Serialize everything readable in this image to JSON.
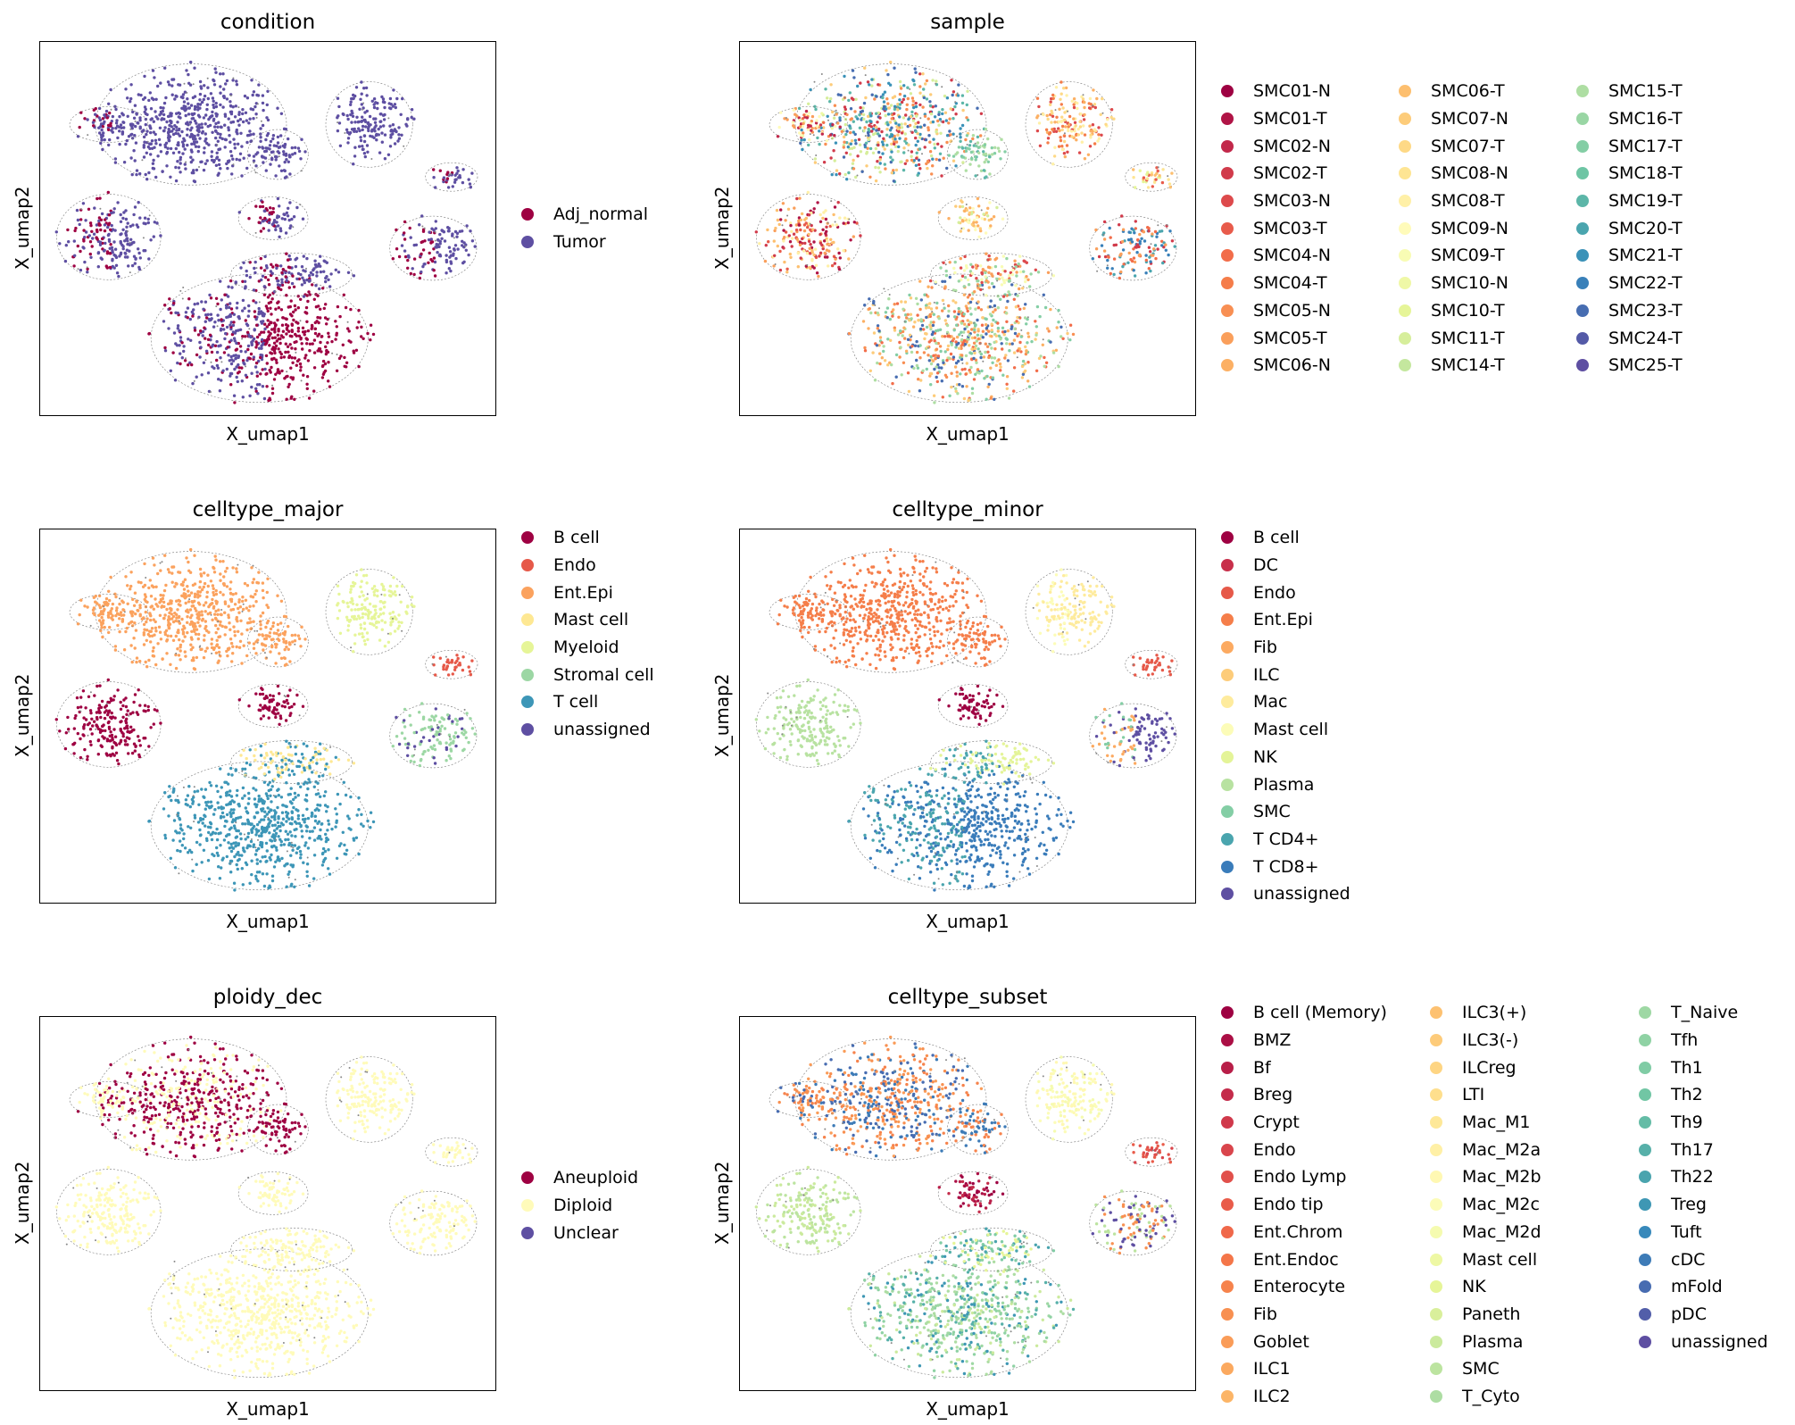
{
  "figure": {
    "panels": [
      {
        "key": "condition",
        "title": "condition",
        "xlabel": "X_umap1",
        "ylabel": "X_umap2",
        "legend_columns": 1,
        "legend": [
          {
            "label": "Adj_normal",
            "color": "#9e0142"
          },
          {
            "label": "Tumor",
            "color": "#5e4fa2"
          }
        ]
      },
      {
        "key": "sample",
        "title": "sample",
        "xlabel": "X_umap1",
        "ylabel": "X_umap2",
        "legend_columns": 3,
        "legend": [
          {
            "label": "SMC01-N",
            "color": "#9e0142"
          },
          {
            "label": "SMC01-T",
            "color": "#b01446"
          },
          {
            "label": "SMC02-N",
            "color": "#c2284a"
          },
          {
            "label": "SMC02-T",
            "color": "#d13b4b"
          },
          {
            "label": "SMC03-N",
            "color": "#dd4a4c"
          },
          {
            "label": "SMC03-T",
            "color": "#e85b4b"
          },
          {
            "label": "SMC04-N",
            "color": "#f26d4a"
          },
          {
            "label": "SMC04-T",
            "color": "#f57d4a"
          },
          {
            "label": "SMC05-N",
            "color": "#f88f53"
          },
          {
            "label": "SMC05-T",
            "color": "#fa9f5b"
          },
          {
            "label": "SMC06-N",
            "color": "#fcb064"
          },
          {
            "label": "SMC06-T",
            "color": "#fdbf6f"
          },
          {
            "label": "SMC07-N",
            "color": "#fdcc7a"
          },
          {
            "label": "SMC07-T",
            "color": "#fed986"
          },
          {
            "label": "SMC08-N",
            "color": "#fee593"
          },
          {
            "label": "SMC08-T",
            "color": "#fff0a7"
          },
          {
            "label": "SMC09-N",
            "color": "#fffbba"
          },
          {
            "label": "SMC09-T",
            "color": "#f8fcb4"
          },
          {
            "label": "SMC10-N",
            "color": "#eff8a6"
          },
          {
            "label": "SMC10-T",
            "color": "#e6f598"
          },
          {
            "label": "SMC11-T",
            "color": "#d6ee9b"
          },
          {
            "label": "SMC14-T",
            "color": "#c4e79e"
          },
          {
            "label": "SMC15-T",
            "color": "#aedea3"
          },
          {
            "label": "SMC16-T",
            "color": "#99d6a4"
          },
          {
            "label": "SMC17-T",
            "color": "#84cea5"
          },
          {
            "label": "SMC18-T",
            "color": "#6ec5a4"
          },
          {
            "label": "SMC19-T",
            "color": "#5cb6a8"
          },
          {
            "label": "SMC20-T",
            "color": "#4aa5ae"
          },
          {
            "label": "SMC21-T",
            "color": "#3b92b8"
          },
          {
            "label": "SMC22-T",
            "color": "#3980b9"
          },
          {
            "label": "SMC23-T",
            "color": "#476db1"
          },
          {
            "label": "SMC24-T",
            "color": "#545aa7"
          },
          {
            "label": "SMC25-T",
            "color": "#5e4fa2"
          }
        ]
      },
      {
        "key": "celltype_major",
        "title": "celltype_major",
        "xlabel": "X_umap1",
        "ylabel": "X_umap2",
        "legend_columns": 1,
        "legend": [
          {
            "label": "B cell",
            "color": "#9e0142"
          },
          {
            "label": "Endo",
            "color": "#e65949"
          },
          {
            "label": "Ent.Epi",
            "color": "#fba25e"
          },
          {
            "label": "Mast cell",
            "color": "#fee893"
          },
          {
            "label": "Myeloid",
            "color": "#e6f598"
          },
          {
            "label": "Stromal cell",
            "color": "#9cd7a4"
          },
          {
            "label": "T cell",
            "color": "#3d96b7"
          },
          {
            "label": "unassigned",
            "color": "#5e4fa2"
          }
        ]
      },
      {
        "key": "celltype_minor",
        "title": "celltype_minor",
        "xlabel": "X_umap1",
        "ylabel": "X_umap2",
        "legend_columns": 1,
        "legend": [
          {
            "label": "B cell",
            "color": "#9e0142"
          },
          {
            "label": "DC",
            "color": "#c8304b"
          },
          {
            "label": "Endo",
            "color": "#e65949"
          },
          {
            "label": "Ent.Epi",
            "color": "#f57e4a"
          },
          {
            "label": "Fib",
            "color": "#fcaa61"
          },
          {
            "label": "ILC",
            "color": "#fdcc7a"
          },
          {
            "label": "Mac",
            "color": "#feeb9d"
          },
          {
            "label": "Mast cell",
            "color": "#fcfcb8"
          },
          {
            "label": "NK",
            "color": "#e4f498"
          },
          {
            "label": "Plasma",
            "color": "#b8e2a1"
          },
          {
            "label": "SMC",
            "color": "#84cea5"
          },
          {
            "label": "T CD4+",
            "color": "#4aa5ae"
          },
          {
            "label": "T CD8+",
            "color": "#3a7cba"
          },
          {
            "label": "unassigned",
            "color": "#5e4fa2"
          }
        ]
      },
      {
        "key": "ploidy_dec",
        "title": "ploidy_dec",
        "xlabel": "X_umap1",
        "ylabel": "X_umap2",
        "legend_columns": 1,
        "legend": [
          {
            "label": "Aneuploid",
            "color": "#9e0142"
          },
          {
            "label": "Diploid",
            "color": "#fffbba"
          },
          {
            "label": "Unclear",
            "color": "#5e4fa2"
          }
        ]
      },
      {
        "key": "celltype_subset",
        "title": "celltype_subset",
        "xlabel": "X_umap1",
        "ylabel": "X_umap2",
        "legend_columns": 3,
        "legend": [
          {
            "label": "B cell (Memory)",
            "color": "#9e0142"
          },
          {
            "label": "BMZ",
            "color": "#ab0f45"
          },
          {
            "label": "Bf",
            "color": "#b81e48"
          },
          {
            "label": "Breg",
            "color": "#c42c4b"
          },
          {
            "label": "Crypt",
            "color": "#d0394b"
          },
          {
            "label": "Endo",
            "color": "#d9454c"
          },
          {
            "label": "Endo Lymp",
            "color": "#e1504b"
          },
          {
            "label": "Endo tip",
            "color": "#e95c4a"
          },
          {
            "label": "Ent.Chrom",
            "color": "#f0684a"
          },
          {
            "label": "Ent.Endoc",
            "color": "#f47649"
          },
          {
            "label": "Enterocyte",
            "color": "#f6834c"
          },
          {
            "label": "Fib",
            "color": "#f89051"
          },
          {
            "label": "Goblet",
            "color": "#fa9c58"
          },
          {
            "label": "ILC1",
            "color": "#fba95f"
          },
          {
            "label": "ILC2",
            "color": "#fcb567"
          },
          {
            "label": "ILC3(+)",
            "color": "#fdc171"
          },
          {
            "label": "ILC3(-)",
            "color": "#fdcb7a"
          },
          {
            "label": "ILCreg",
            "color": "#fed583"
          },
          {
            "label": "LTI",
            "color": "#fedf8d"
          },
          {
            "label": "Mac_M1",
            "color": "#fee898"
          },
          {
            "label": "Mac_M2a",
            "color": "#fff0a6"
          },
          {
            "label": "Mac_M2b",
            "color": "#fff8b3"
          },
          {
            "label": "Mac_M2c",
            "color": "#fcfcb8"
          },
          {
            "label": "Mac_M2d",
            "color": "#f5fbb0"
          },
          {
            "label": "Mast cell",
            "color": "#eef8a4"
          },
          {
            "label": "NK",
            "color": "#e6f598"
          },
          {
            "label": "Paneth",
            "color": "#d9ef9b"
          },
          {
            "label": "Plasma",
            "color": "#cbea9d"
          },
          {
            "label": "SMC",
            "color": "#bce4a0"
          },
          {
            "label": "T_Cyto",
            "color": "#addda3"
          },
          {
            "label": "T_Naive",
            "color": "#9ed8a4"
          },
          {
            "label": "Tfh",
            "color": "#8fd2a4"
          },
          {
            "label": "Th1",
            "color": "#80cca5"
          },
          {
            "label": "Th2",
            "color": "#71c6a4"
          },
          {
            "label": "Th9",
            "color": "#64bca6"
          },
          {
            "label": "Th17",
            "color": "#57b0a9"
          },
          {
            "label": "Th22",
            "color": "#4aa4ae"
          },
          {
            "label": "Treg",
            "color": "#3e97b4"
          },
          {
            "label": "Tuft",
            "color": "#3889bb"
          },
          {
            "label": "cDC",
            "color": "#3d7bb7"
          },
          {
            "label": "mFold",
            "color": "#476cb1"
          },
          {
            "label": "pDC",
            "color": "#525ea9"
          },
          {
            "label": "unassigned",
            "color": "#5e4fa2"
          }
        ]
      }
    ]
  },
  "chart_data": [
    {
      "type": "scatter",
      "title": "condition",
      "xlabel": "X_umap1",
      "ylabel": "X_umap2",
      "categories": [
        "Adj_normal",
        "Tumor"
      ]
    },
    {
      "type": "scatter",
      "title": "sample",
      "xlabel": "X_umap1",
      "ylabel": "X_umap2",
      "categories": [
        "SMC01-N",
        "SMC01-T",
        "SMC02-N",
        "SMC02-T",
        "SMC03-N",
        "SMC03-T",
        "SMC04-N",
        "SMC04-T",
        "SMC05-N",
        "SMC05-T",
        "SMC06-N",
        "SMC06-T",
        "SMC07-N",
        "SMC07-T",
        "SMC08-N",
        "SMC08-T",
        "SMC09-N",
        "SMC09-T",
        "SMC10-N",
        "SMC10-T",
        "SMC11-T",
        "SMC14-T",
        "SMC15-T",
        "SMC16-T",
        "SMC17-T",
        "SMC18-T",
        "SMC19-T",
        "SMC20-T",
        "SMC21-T",
        "SMC22-T",
        "SMC23-T",
        "SMC24-T",
        "SMC25-T"
      ]
    },
    {
      "type": "scatter",
      "title": "celltype_major",
      "xlabel": "X_umap1",
      "ylabel": "X_umap2",
      "categories": [
        "B cell",
        "Endo",
        "Ent.Epi",
        "Mast cell",
        "Myeloid",
        "Stromal cell",
        "T cell",
        "unassigned"
      ]
    },
    {
      "type": "scatter",
      "title": "celltype_minor",
      "xlabel": "X_umap1",
      "ylabel": "X_umap2",
      "categories": [
        "B cell",
        "DC",
        "Endo",
        "Ent.Epi",
        "Fib",
        "ILC",
        "Mac",
        "Mast cell",
        "NK",
        "Plasma",
        "SMC",
        "T CD4+",
        "T CD8+",
        "unassigned"
      ]
    },
    {
      "type": "scatter",
      "title": "ploidy_dec",
      "xlabel": "X_umap1",
      "ylabel": "X_umap2",
      "categories": [
        "Aneuploid",
        "Diploid",
        "Unclear"
      ]
    },
    {
      "type": "scatter",
      "title": "celltype_subset",
      "xlabel": "X_umap1",
      "ylabel": "X_umap2",
      "categories": [
        "B cell (Memory)",
        "BMZ",
        "Bf",
        "Breg",
        "Crypt",
        "Endo",
        "Endo Lymp",
        "Endo tip",
        "Ent.Chrom",
        "Ent.Endoc",
        "Enterocyte",
        "Fib",
        "Goblet",
        "ILC1",
        "ILC2",
        "ILC3(+)",
        "ILC3(-)",
        "ILCreg",
        "LTI",
        "Mac_M1",
        "Mac_M2a",
        "Mac_M2b",
        "Mac_M2c",
        "Mac_M2d",
        "Mast cell",
        "NK",
        "Paneth",
        "Plasma",
        "SMC",
        "T_Cyto",
        "T_Naive",
        "Tfh",
        "Th1",
        "Th2",
        "Th9",
        "Th17",
        "Th22",
        "Treg",
        "Tuft",
        "cDC",
        "mFold",
        "pDC",
        "unassigned"
      ]
    }
  ]
}
